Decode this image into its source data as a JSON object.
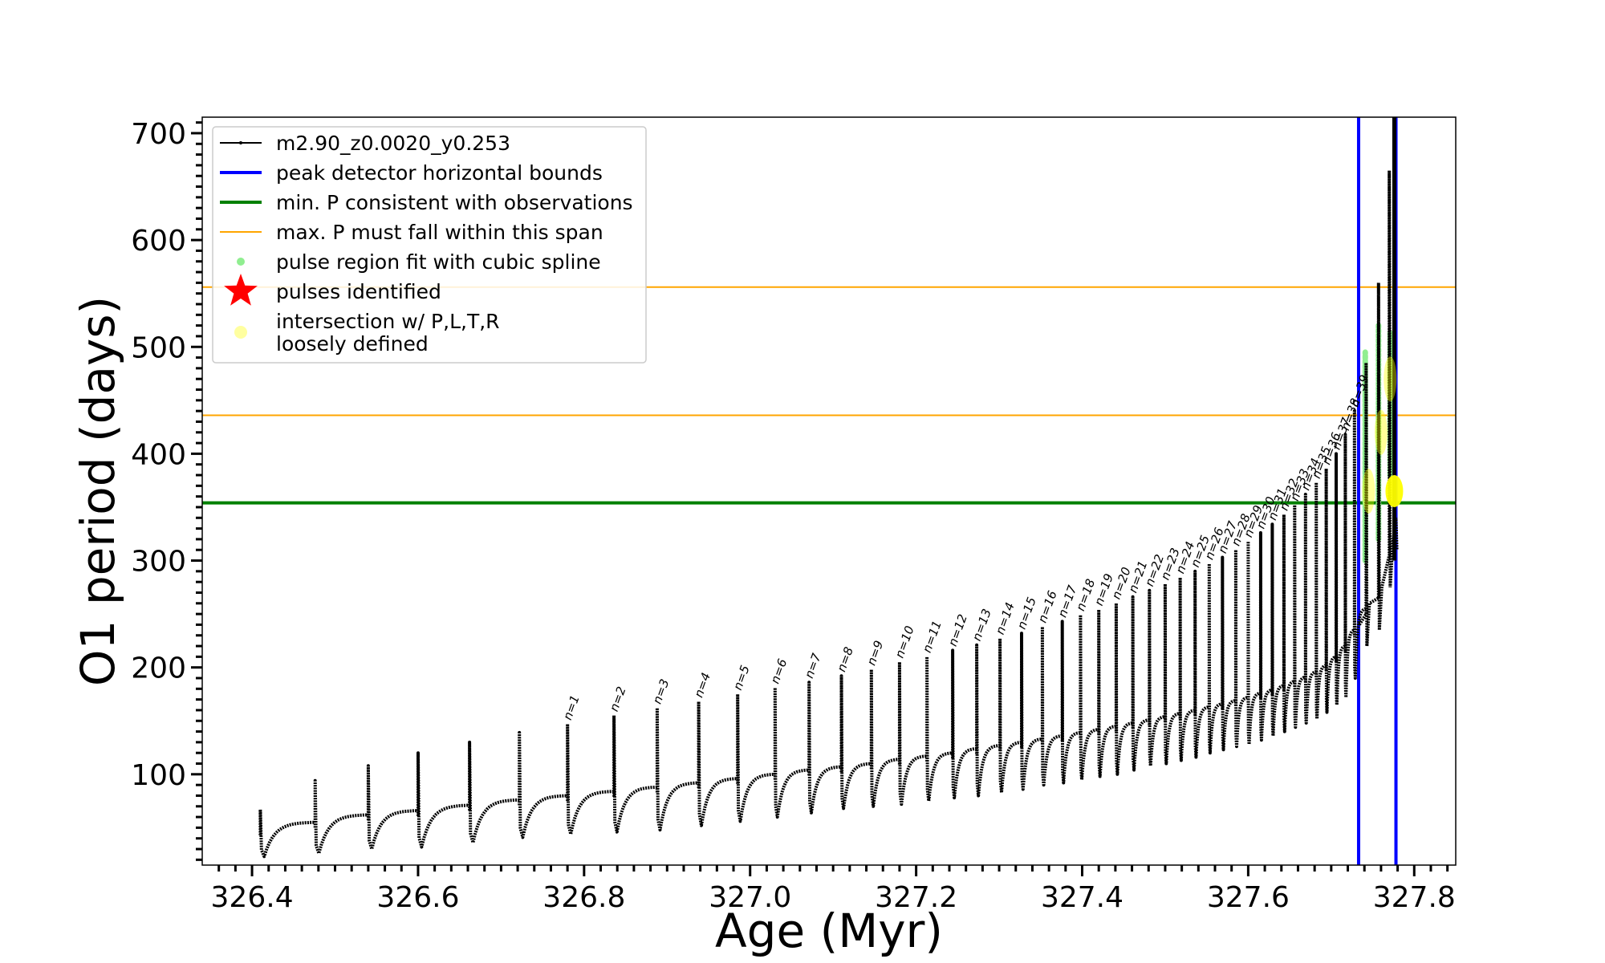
{
  "chart_data": {
    "type": "line",
    "xlabel": "Age (Myr)",
    "ylabel": "O1 period (days)",
    "xlim": [
      326.34,
      327.85
    ],
    "ylim": [
      15,
      715
    ],
    "xticks": [
      326.4,
      326.6,
      326.8,
      327.0,
      327.2,
      327.4,
      327.6,
      327.8
    ],
    "xtick_labels": [
      "326.4",
      "326.6",
      "326.8",
      "327.0",
      "327.2",
      "327.4",
      "327.6",
      "327.8"
    ],
    "yticks": [
      100,
      200,
      300,
      400,
      500,
      600,
      700
    ],
    "ytick_labels": [
      "100",
      "200",
      "300",
      "400",
      "500",
      "600",
      "700"
    ],
    "legend_position": "top-left",
    "legend": [
      {
        "label": "m2.90_z0.0020_y0.253",
        "marker": "line-dot",
        "color": "#000000"
      },
      {
        "label": "peak detector horizontal bounds",
        "marker": "line",
        "color": "#0000ff"
      },
      {
        "label": "min. P consistent with observations",
        "marker": "line",
        "color": "#008000"
      },
      {
        "label": "max. P must fall within this span",
        "marker": "thin-line",
        "color": "#ffa500"
      },
      {
        "label": "pulse region fit with cubic spline",
        "marker": "dot",
        "color": "#90ee90"
      },
      {
        "label": "pulses identified",
        "marker": "star",
        "color": "#ff0000"
      },
      {
        "label": "intersection w/ P,L,T,R",
        "label2": "loosely defined",
        "marker": "circle",
        "color": "#ffffa0"
      }
    ],
    "reference_lines": {
      "vertical_blue": [
        327.733,
        327.778
      ],
      "horizontal_green": 354,
      "horizontal_orange": [
        436,
        556
      ]
    },
    "pulse_labels": [
      "n=1",
      "n=2",
      "n=3",
      "n=4",
      "n=5",
      "n=6",
      "n=7",
      "n=8",
      "n=9",
      "n=10",
      "n=11",
      "n=12",
      "n=13",
      "n=14",
      "n=15",
      "n=16",
      "n=17",
      "n=18",
      "n=19",
      "n=20",
      "n=21",
      "n=22",
      "n=23",
      "n=24",
      "n=25",
      "n=26",
      "n=27",
      "n=28",
      "n=29",
      "n=30",
      "n=31",
      "n=32",
      "n=33",
      "n=34",
      "n=35",
      "n=36",
      "n=37",
      "n=38",
      "n=39"
    ],
    "pulses": [
      {
        "age": 326.41,
        "peak": 67,
        "min": 23,
        "base": 48
      },
      {
        "age": 326.476,
        "peak": 94,
        "min": 26,
        "base": 55
      },
      {
        "age": 326.54,
        "peak": 108,
        "min": 30,
        "base": 62
      },
      {
        "age": 326.6,
        "peak": 120,
        "min": 32,
        "base": 66
      },
      {
        "age": 326.662,
        "peak": 130,
        "min": 36,
        "base": 71
      },
      {
        "age": 326.722,
        "peak": 139,
        "min": 41,
        "base": 76
      },
      {
        "age": 326.78,
        "peak": 147,
        "min": 44,
        "base": 80,
        "n": "n=1"
      },
      {
        "age": 326.836,
        "peak": 155,
        "min": 46,
        "base": 84,
        "n": "n=2"
      },
      {
        "age": 326.888,
        "peak": 162,
        "min": 48,
        "base": 88,
        "n": "n=3"
      },
      {
        "age": 326.938,
        "peak": 168,
        "min": 52,
        "base": 92,
        "n": "n=4"
      },
      {
        "age": 326.985,
        "peak": 175,
        "min": 56,
        "base": 96,
        "n": "n=5"
      },
      {
        "age": 327.03,
        "peak": 181,
        "min": 60,
        "base": 100,
        "n": "n=6"
      },
      {
        "age": 327.071,
        "peak": 186,
        "min": 64,
        "base": 104,
        "n": "n=7"
      },
      {
        "age": 327.11,
        "peak": 192,
        "min": 68,
        "base": 107,
        "n": "n=8"
      },
      {
        "age": 327.146,
        "peak": 198,
        "min": 70,
        "base": 110,
        "n": "n=9"
      },
      {
        "age": 327.18,
        "peak": 205,
        "min": 72,
        "base": 114,
        "n": "n=10"
      },
      {
        "age": 327.213,
        "peak": 210,
        "min": 75,
        "base": 117,
        "n": "n=11"
      },
      {
        "age": 327.244,
        "peak": 216,
        "min": 78,
        "base": 120,
        "n": "n=12"
      },
      {
        "age": 327.273,
        "peak": 221,
        "min": 80,
        "base": 124,
        "n": "n=13"
      },
      {
        "age": 327.301,
        "peak": 227,
        "min": 83,
        "base": 127,
        "n": "n=14"
      },
      {
        "age": 327.327,
        "peak": 232,
        "min": 86,
        "base": 130,
        "n": "n=15"
      },
      {
        "age": 327.352,
        "peak": 238,
        "min": 90,
        "base": 133,
        "n": "n=16"
      },
      {
        "age": 327.376,
        "peak": 243,
        "min": 92,
        "base": 136,
        "n": "n=17"
      },
      {
        "age": 327.398,
        "peak": 249,
        "min": 95,
        "base": 139,
        "n": "n=18"
      },
      {
        "age": 327.42,
        "peak": 254,
        "min": 98,
        "base": 142,
        "n": "n=19"
      },
      {
        "age": 327.441,
        "peak": 260,
        "min": 100,
        "base": 145,
        "n": "n=20"
      },
      {
        "age": 327.461,
        "peak": 266,
        "min": 104,
        "base": 148,
        "n": "n=21"
      },
      {
        "age": 327.481,
        "peak": 272,
        "min": 108,
        "base": 151,
        "n": "n=22"
      },
      {
        "age": 327.5,
        "peak": 278,
        "min": 110,
        "base": 154,
        "n": "n=23"
      },
      {
        "age": 327.518,
        "peak": 284,
        "min": 113,
        "base": 157,
        "n": "n=24"
      },
      {
        "age": 327.536,
        "peak": 290,
        "min": 116,
        "base": 160,
        "n": "n=25"
      },
      {
        "age": 327.553,
        "peak": 297,
        "min": 120,
        "base": 163,
        "n": "n=26"
      },
      {
        "age": 327.569,
        "peak": 303,
        "min": 123,
        "base": 166,
        "n": "n=27"
      },
      {
        "age": 327.585,
        "peak": 310,
        "min": 126,
        "base": 169,
        "n": "n=28"
      },
      {
        "age": 327.6,
        "peak": 318,
        "min": 128,
        "base": 172,
        "n": "n=29"
      },
      {
        "age": 327.615,
        "peak": 326,
        "min": 132,
        "base": 176,
        "n": "n=30"
      },
      {
        "age": 327.629,
        "peak": 334,
        "min": 136,
        "base": 179,
        "n": "n=31"
      },
      {
        "age": 327.643,
        "peak": 343,
        "min": 140,
        "base": 183,
        "n": "n=32"
      },
      {
        "age": 327.656,
        "peak": 352,
        "min": 144,
        "base": 187,
        "n": "n=33"
      },
      {
        "age": 327.669,
        "peak": 362,
        "min": 148,
        "base": 191,
        "n": "n=34"
      },
      {
        "age": 327.682,
        "peak": 373,
        "min": 152,
        "base": 196,
        "n": "n=35"
      },
      {
        "age": 327.694,
        "peak": 386,
        "min": 158,
        "base": 202,
        "n": "n=36"
      },
      {
        "age": 327.706,
        "peak": 400,
        "min": 165,
        "base": 210,
        "n": "n=37"
      },
      {
        "age": 327.717,
        "peak": 418,
        "min": 172,
        "base": 220,
        "n": "n=38"
      },
      {
        "age": 327.728,
        "peak": 440,
        "min": 190,
        "base": 235,
        "n": "n=39"
      }
    ],
    "late_spikes": [
      {
        "age": 327.742,
        "peak": 485,
        "min": 220
      },
      {
        "age": 327.757,
        "peak": 560,
        "min": 235
      },
      {
        "age": 327.77,
        "peak": 665,
        "min": 275
      }
    ],
    "spline_regions": [
      {
        "age": 327.741,
        "from": 300,
        "to": 495
      },
      {
        "age": 327.757,
        "from": 320,
        "to": 520
      },
      {
        "age": 327.771,
        "from": 380,
        "to": 515
      }
    ],
    "intersections": [
      {
        "age": 327.745,
        "y": 365
      },
      {
        "age": 327.76,
        "y": 420
      },
      {
        "age": 327.771,
        "y": 470
      },
      {
        "age": 327.776,
        "y": 365
      }
    ]
  }
}
